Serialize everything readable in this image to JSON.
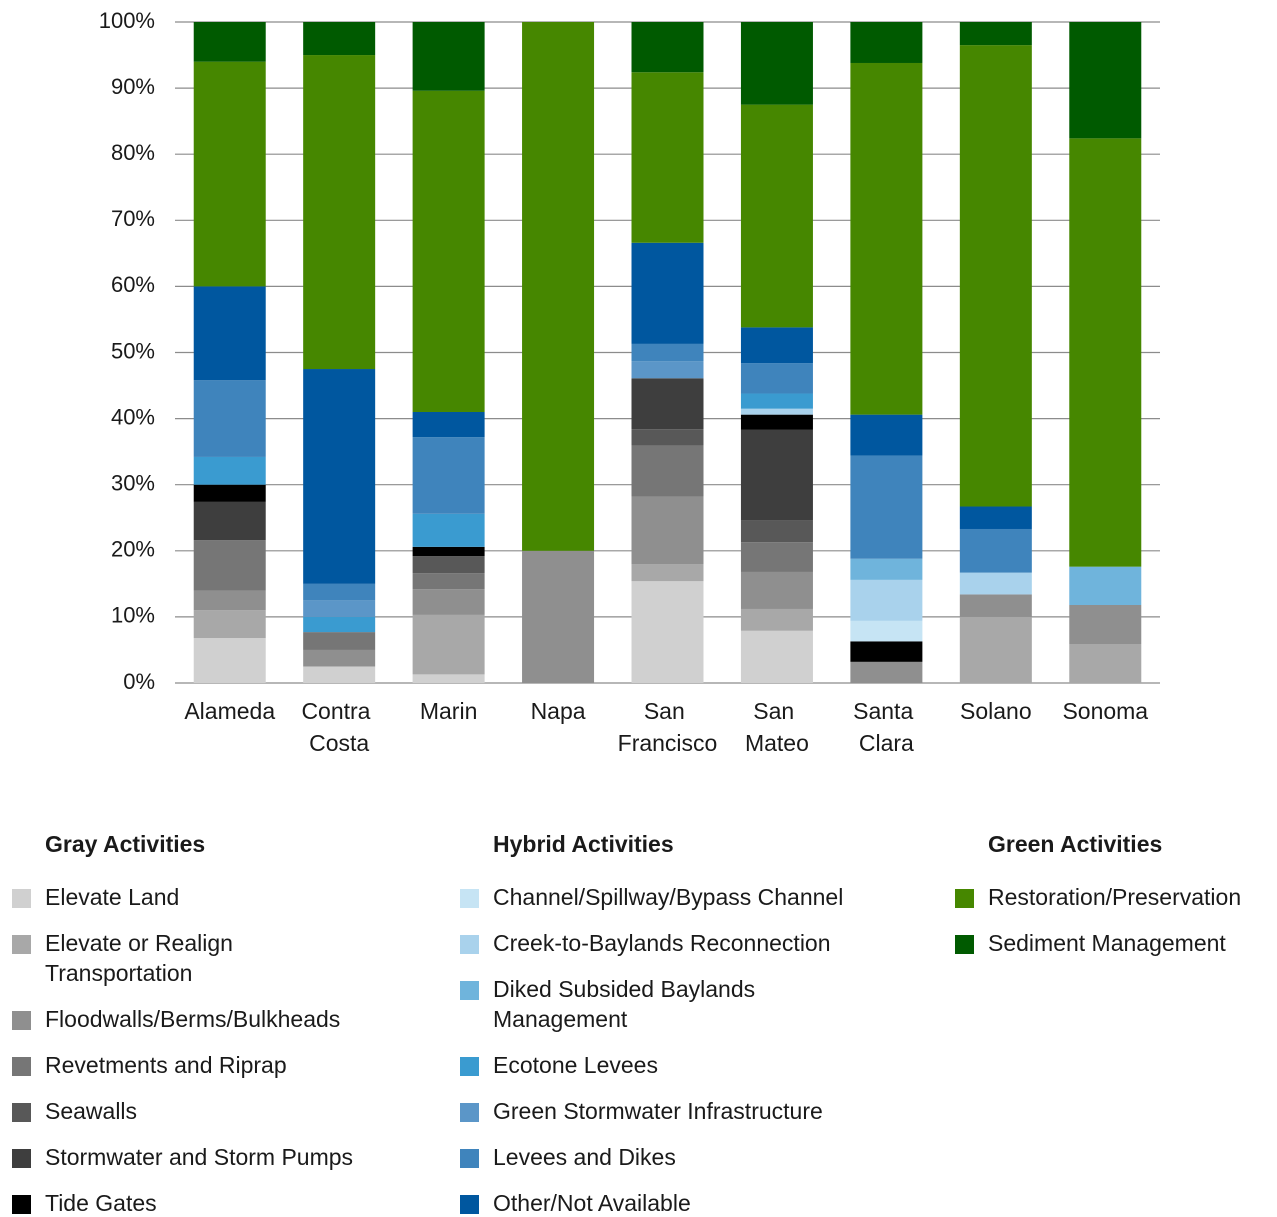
{
  "chart_data": {
    "type": "stacked_bar",
    "categories": [
      "Alameda",
      "Contra Costa",
      "Marin",
      "Napa",
      "San Francisco",
      "San Mateo",
      "Santa Clara",
      "Solano",
      "Sonoma"
    ],
    "ylim": [
      0,
      100
    ],
    "yticks": [
      {
        "value": 0,
        "label": "0%"
      },
      {
        "value": 10,
        "label": "10%"
      },
      {
        "value": 20,
        "label": "20%"
      },
      {
        "value": 30,
        "label": "30%"
      },
      {
        "value": 40,
        "label": "40%"
      },
      {
        "value": 50,
        "label": "50%"
      },
      {
        "value": 60,
        "label": "60%"
      },
      {
        "value": 70,
        "label": "70%"
      },
      {
        "value": 80,
        "label": "80%"
      },
      {
        "value": 90,
        "label": "90%"
      },
      {
        "value": 100,
        "label": "100%"
      }
    ],
    "grid": true,
    "series": [
      {
        "name": "Elevate Land",
        "color": "#d0d0d0",
        "values": [
          6.8,
          2.5,
          1.3,
          0,
          15.4,
          7.9,
          0,
          0,
          0
        ]
      },
      {
        "name": "Elevate or Realign Transportation",
        "color": "#a8a8a8",
        "values": [
          4.2,
          0,
          9,
          0,
          2.6,
          3.3,
          0,
          10,
          5.9
        ]
      },
      {
        "name": "Floodwalls/Berms/Bulkheads",
        "color": "#8f8f8f",
        "values": [
          3,
          2.5,
          3.9,
          20,
          10.2,
          5.6,
          3.2,
          3.4,
          5.9
        ]
      },
      {
        "name": "Revetments and Riprap",
        "color": "#767676",
        "values": [
          7.6,
          2.7,
          2.4,
          0,
          7.7,
          4.5,
          0,
          0,
          0
        ]
      },
      {
        "name": "Seawalls",
        "color": "#585858",
        "values": [
          0,
          0,
          2.6,
          0,
          2.5,
          3.3,
          0,
          0,
          0
        ]
      },
      {
        "name": "Stormwater and Storm Pumps",
        "color": "#3e3e3e",
        "values": [
          5.8,
          0,
          0,
          0,
          7.7,
          13.7,
          0,
          0,
          0
        ]
      },
      {
        "name": "Tide Gates",
        "color": "#000000",
        "values": [
          2.6,
          0,
          1.4,
          0,
          0,
          2.3,
          3.1,
          0,
          0
        ]
      },
      {
        "name": "Channel/Spillway/Bypass Channel",
        "color": "#c6e4f4",
        "values": [
          0,
          0,
          0,
          0,
          0,
          0,
          3.1,
          0,
          0
        ]
      },
      {
        "name": "Creek-to-Baylands Reconnection",
        "color": "#a9d2ec",
        "values": [
          0,
          0,
          0,
          0,
          0,
          0.9,
          6.2,
          3.3,
          0
        ]
      },
      {
        "name": "Diked Subsided Baylands Management",
        "color": "#6fb4dc",
        "values": [
          0,
          0,
          0,
          0,
          0,
          0,
          3.2,
          0,
          5.8
        ]
      },
      {
        "name": "Ecotone Levees",
        "color": "#3a9bd0",
        "values": [
          4.2,
          2.3,
          5,
          0,
          0,
          2.3,
          0,
          0,
          0
        ]
      },
      {
        "name": "Green Stormwater Infrastructure",
        "color": "#5b96c8",
        "values": [
          0,
          2.5,
          0,
          0,
          2.6,
          0,
          0,
          0,
          0
        ]
      },
      {
        "name": "Levees and Dikes",
        "color": "#3f84bc",
        "values": [
          11.6,
          2.5,
          11.6,
          0,
          2.6,
          4.6,
          15.6,
          6.6,
          0
        ]
      },
      {
        "name": "Other/Not Available",
        "color": "#00579f",
        "values": [
          14.2,
          32.5,
          3.8,
          0,
          15.3,
          5.4,
          6.2,
          3.4,
          0
        ]
      },
      {
        "name": "Restoration/Preservation",
        "color": "#468700",
        "values": [
          34,
          47.5,
          48.6,
          80,
          25.8,
          33.7,
          53.2,
          69.8,
          64.8
        ]
      },
      {
        "name": "Sediment Management",
        "color": "#005a00",
        "values": [
          6,
          5,
          10.4,
          0,
          7.6,
          12.5,
          6.2,
          3.5,
          17.6
        ]
      }
    ],
    "legend_groups": [
      {
        "title": "Gray Activities",
        "series": [
          0,
          1,
          2,
          3,
          4,
          5,
          6
        ]
      },
      {
        "title": "Hybrid Activities",
        "series": [
          7,
          8,
          9,
          10,
          11,
          12,
          13
        ]
      },
      {
        "title": "Green Activities",
        "series": [
          14,
          15
        ]
      }
    ]
  }
}
